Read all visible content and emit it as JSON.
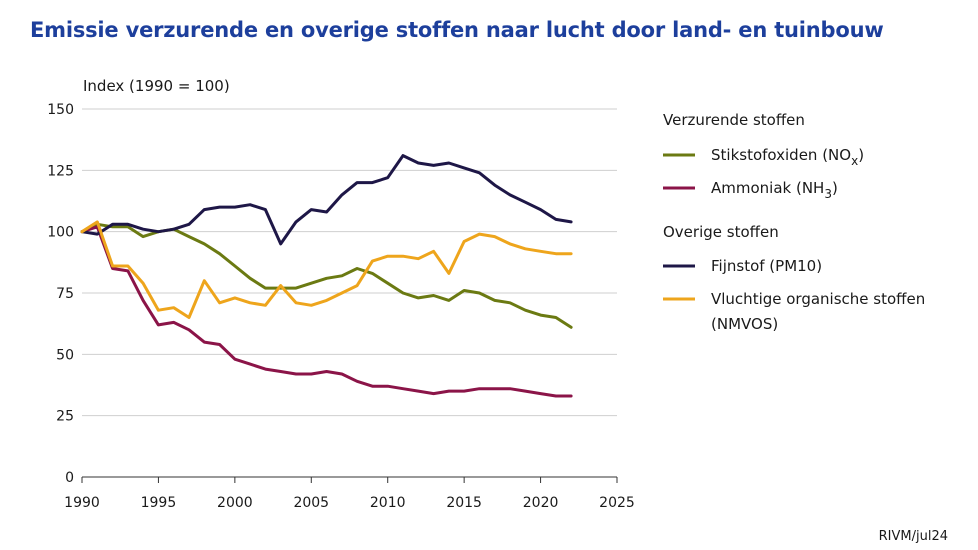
{
  "chart_data": {
    "type": "line",
    "title": "Emissie verzurende en overige stoffen naar lucht door land- en tuinbouw",
    "ylabel": "Index (1990 = 100)",
    "xlabel": "",
    "xlim": [
      1990,
      2025
    ],
    "ylim": [
      0,
      150
    ],
    "xticks": [
      1990,
      1995,
      2000,
      2005,
      2010,
      2015,
      2020,
      2025
    ],
    "yticks": [
      0,
      25,
      50,
      75,
      100,
      125,
      150
    ],
    "grid": "horizontal",
    "legend_position": "right",
    "x": [
      1990,
      1991,
      1992,
      1993,
      1994,
      1995,
      1996,
      1997,
      1998,
      1999,
      2000,
      2001,
      2002,
      2003,
      2004,
      2005,
      2006,
      2007,
      2008,
      2009,
      2010,
      2011,
      2012,
      2013,
      2014,
      2015,
      2016,
      2017,
      2018,
      2019,
      2020,
      2021,
      2022
    ],
    "groups": [
      {
        "name": "Verzurende stoffen",
        "series_index": [
          0,
          1
        ]
      },
      {
        "name": "Overige stoffen",
        "series_index": [
          2,
          3
        ]
      }
    ],
    "series": [
      {
        "name": "Stikstofoxiden (NOx)",
        "name_main": "Stikstofoxiden (NO",
        "name_sub": "x",
        "name_tail": ")",
        "color": "#6b7a12",
        "values": [
          100,
          103,
          102,
          102,
          98,
          100,
          101,
          98,
          95,
          91,
          86,
          81,
          77,
          77,
          77,
          79,
          81,
          82,
          85,
          83,
          79,
          75,
          73,
          74,
          72,
          76,
          75,
          72,
          71,
          68,
          66,
          65,
          61
        ]
      },
      {
        "name": "Ammoniak (NH3)",
        "name_main": "Ammoniak (NH",
        "name_sub": "3",
        "name_tail": ")",
        "color": "#8b1448",
        "values": [
          100,
          102,
          85,
          84,
          72,
          62,
          63,
          60,
          55,
          54,
          48,
          46,
          44,
          43,
          42,
          42,
          43,
          42,
          39,
          37,
          37,
          36,
          35,
          34,
          35,
          35,
          36,
          36,
          36,
          35,
          34,
          33,
          33
        ]
      },
      {
        "name": "Fijnstof (PM10)",
        "name_main": "Fijnstof (PM10)",
        "name_sub": "",
        "name_tail": "",
        "color": "#1e1747",
        "values": [
          100,
          99,
          103,
          103,
          101,
          100,
          101,
          103,
          109,
          110,
          110,
          111,
          109,
          95,
          104,
          109,
          108,
          115,
          120,
          120,
          122,
          131,
          128,
          127,
          128,
          126,
          124,
          119,
          115,
          112,
          109,
          105,
          104
        ]
      },
      {
        "name": "Vluchtige organische stoffen (NMVOS)",
        "name_main": "Vluchtige organische stoffen",
        "name_line2": "(NMVOS)",
        "name_sub": "",
        "name_tail": "",
        "color": "#eea51c",
        "values": [
          100,
          104,
          86,
          86,
          79,
          68,
          69,
          65,
          80,
          71,
          73,
          71,
          70,
          78,
          71,
          70,
          72,
          75,
          78,
          88,
          90,
          90,
          89,
          92,
          83,
          96,
          99,
          98,
          95,
          93,
          92,
          91,
          91
        ]
      }
    ]
  },
  "source": "RIVM/jul24"
}
